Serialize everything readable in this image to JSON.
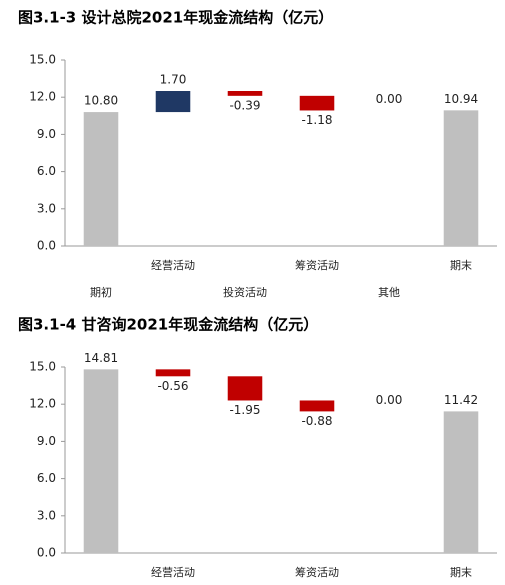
{
  "chart_data": [
    {
      "type": "waterfall",
      "title": "图3.1-3 设计总院2021年现金流结构（亿元）",
      "categories": [
        "期初",
        "经营活动",
        "投资活动",
        "筹资活动",
        "其他",
        "期末"
      ],
      "values": [
        10.8,
        1.7,
        -0.39,
        -1.18,
        0.0,
        10.94
      ],
      "value_labels": [
        "10.80",
        "1.70",
        "-0.39",
        "-1.18",
        "0.00",
        "10.94"
      ],
      "total_color": "#bfbfbf",
      "increase_color": "#1f3864",
      "decrease_color": "#c00000",
      "ylim": [
        0,
        15
      ],
      "yticks": [
        {
          "value": 0,
          "label": "0.0"
        },
        {
          "value": 3,
          "label": "3.0"
        },
        {
          "value": 6,
          "label": "6.0"
        },
        {
          "value": 9,
          "label": "9.0"
        },
        {
          "value": 12,
          "label": "12.0"
        },
        {
          "value": 15,
          "label": "15.0"
        }
      ]
    },
    {
      "type": "waterfall",
      "title": "图3.1-4 甘咨询2021年现金流结构（亿元）",
      "categories": [
        null,
        "经营活动",
        null,
        "筹资活动",
        null,
        "期末"
      ],
      "values": [
        14.81,
        -0.56,
        -1.95,
        -0.88,
        0.0,
        11.42
      ],
      "value_labels": [
        "14.81",
        "-0.56",
        "-1.95",
        "-0.88",
        "0.00",
        "11.42"
      ],
      "total_color": "#bfbfbf",
      "increase_color": "#1f3864",
      "decrease_color": "#c00000",
      "ylim": [
        0,
        15
      ],
      "yticks": [
        {
          "value": 0,
          "label": "0.0"
        },
        {
          "value": 3,
          "label": "3.0"
        },
        {
          "value": 6,
          "label": "6.0"
        },
        {
          "value": 9,
          "label": "9.0"
        },
        {
          "value": 12,
          "label": "12.0"
        },
        {
          "value": 15,
          "label": "15.0"
        }
      ]
    }
  ]
}
